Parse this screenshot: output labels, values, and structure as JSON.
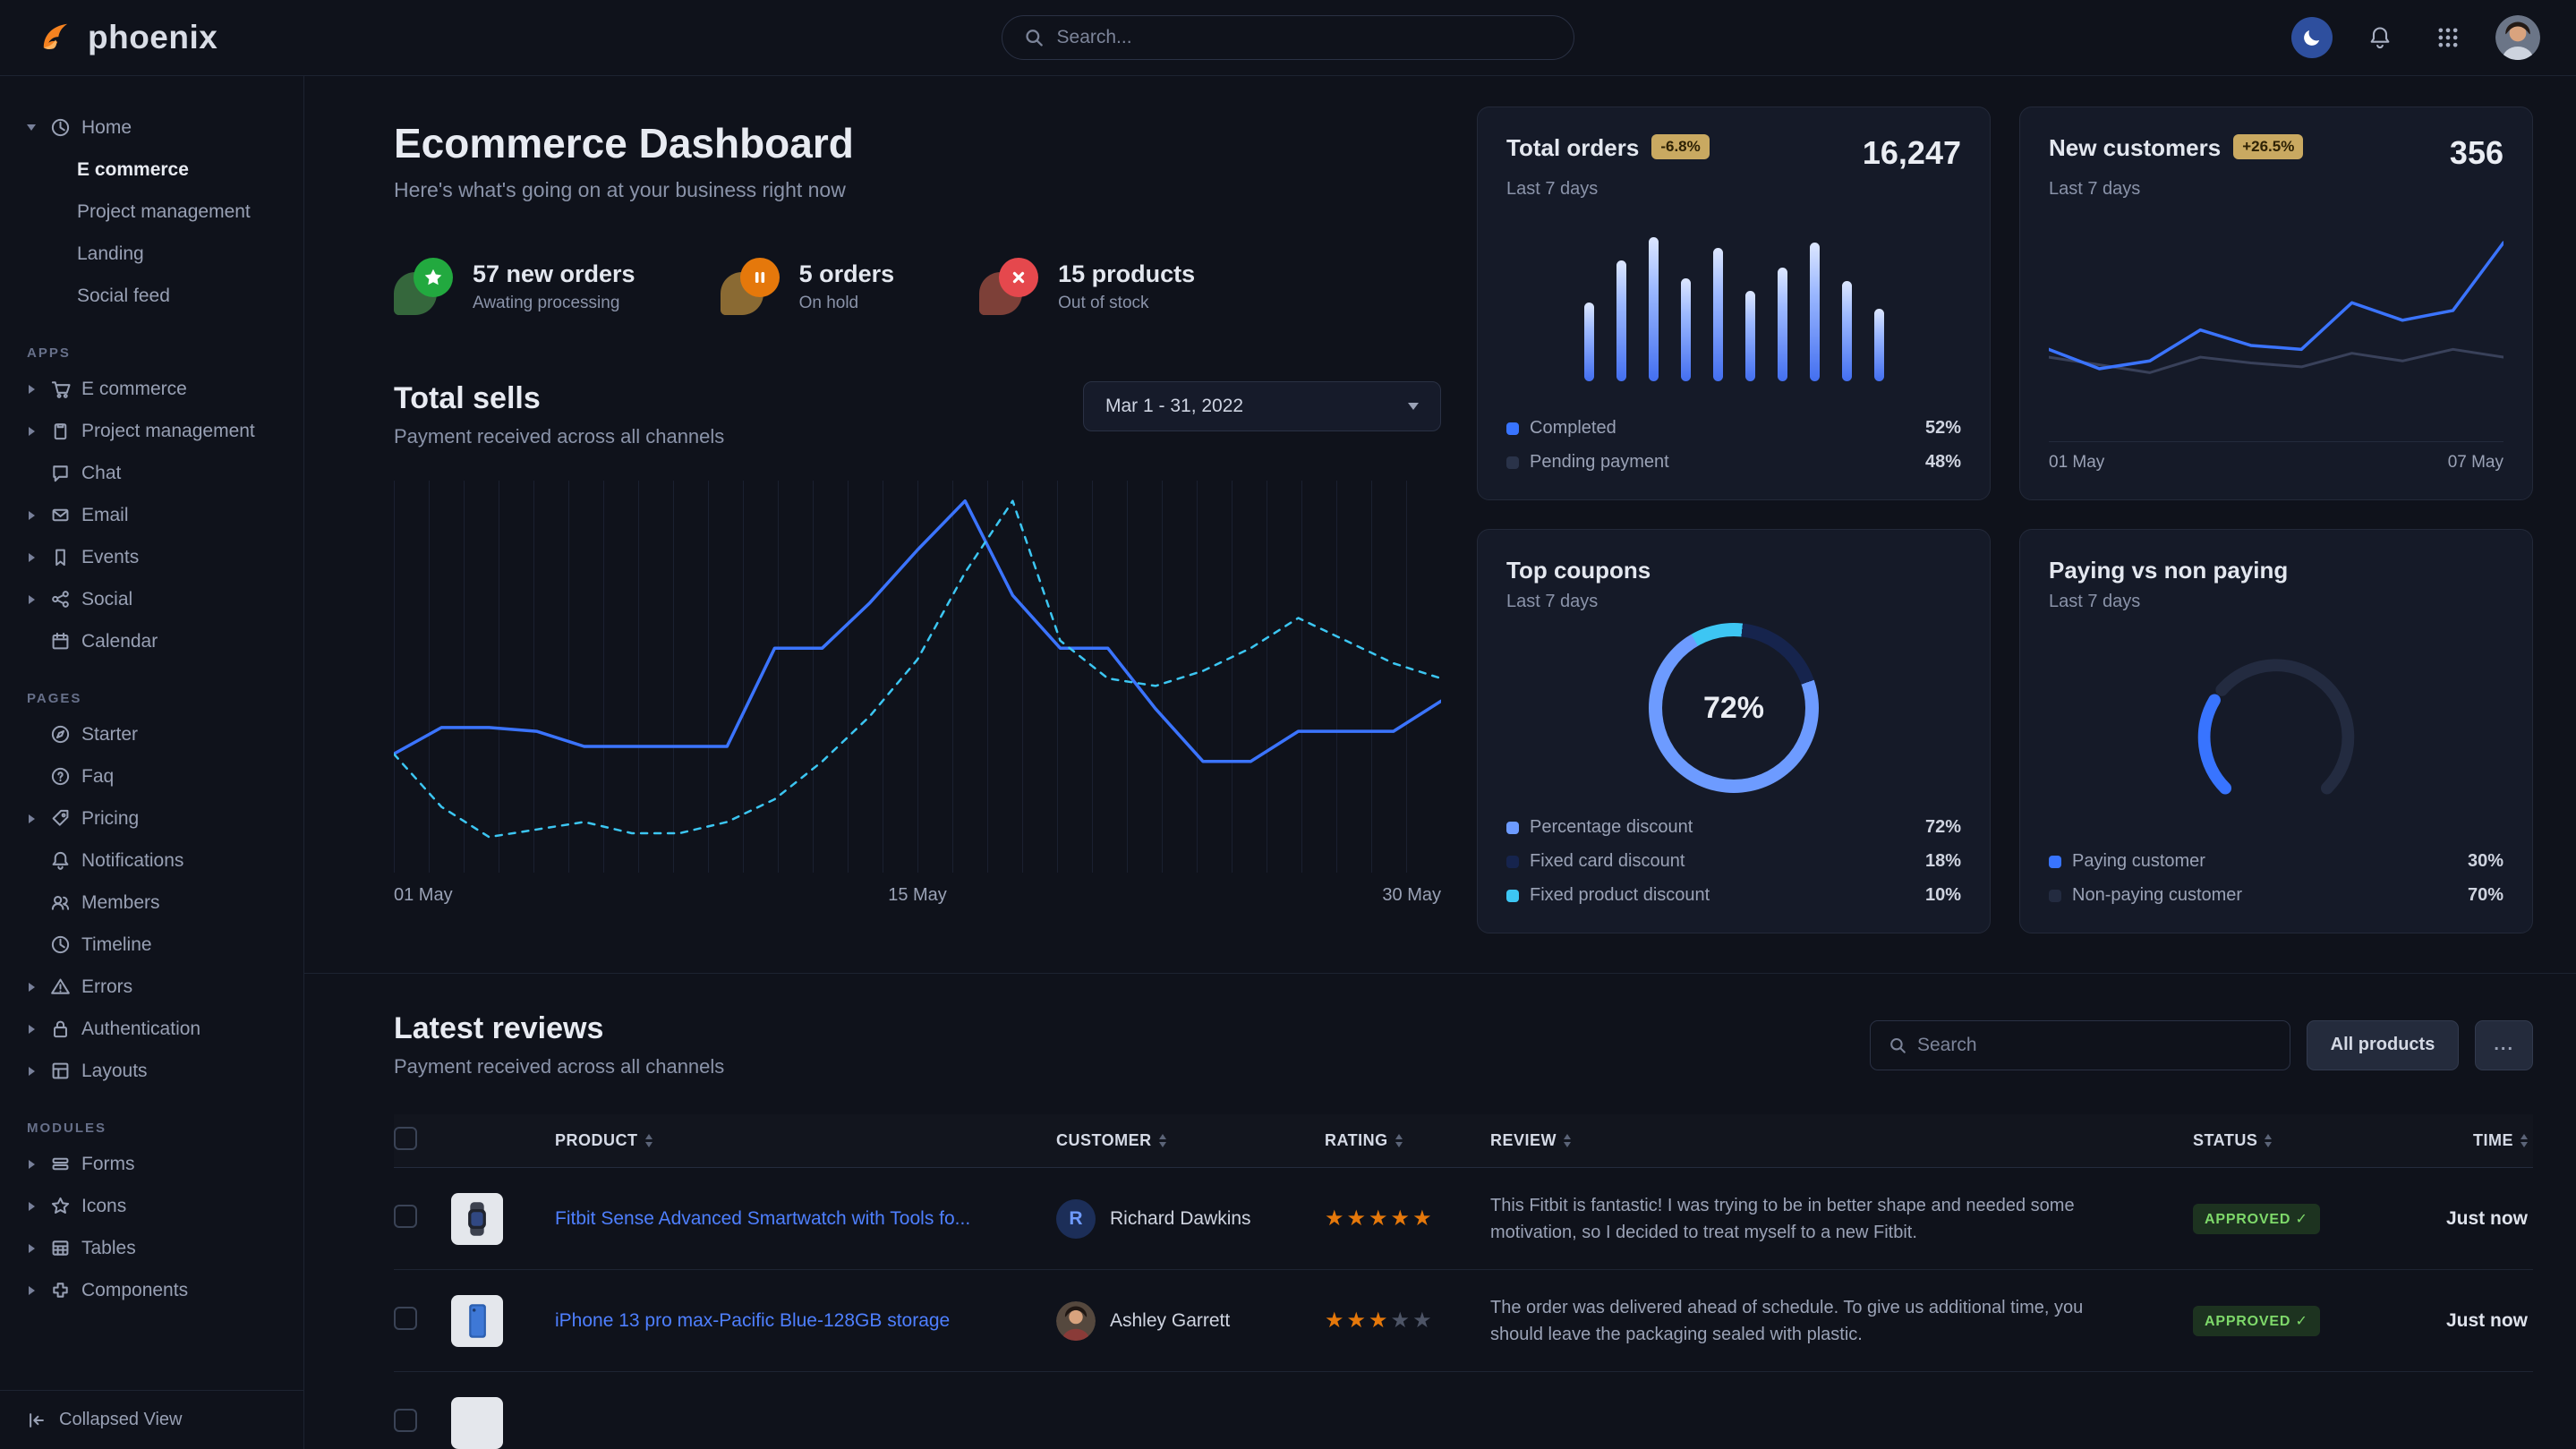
{
  "theme": {
    "bg": "#0f121b",
    "card": "#151a28",
    "primary": "#3874ff",
    "link": "#4e7fff",
    "green": "#25b003",
    "orange": "#e5780b",
    "red": "#ed2000",
    "cyan": "#3cc6f2"
  },
  "navbar": {
    "brand": "phoenix",
    "search": {
      "placeholder": "Search..."
    }
  },
  "sidebar": {
    "groups": [
      {
        "label": null,
        "items": [
          {
            "icon": "clock",
            "label": "Home",
            "caret": "down",
            "children": [
              {
                "label": "E commerce",
                "active": true
              },
              {
                "label": "Project management"
              },
              {
                "label": "Landing"
              },
              {
                "label": "Social feed"
              }
            ]
          }
        ]
      },
      {
        "label": "APPS",
        "items": [
          {
            "icon": "cart",
            "label": "E commerce",
            "caret": "right"
          },
          {
            "icon": "clipboard",
            "label": "Project management",
            "caret": "right"
          },
          {
            "icon": "chat",
            "label": "Chat"
          },
          {
            "icon": "mail",
            "label": "Email",
            "caret": "right"
          },
          {
            "icon": "bookmark",
            "label": "Events",
            "caret": "right"
          },
          {
            "icon": "share",
            "label": "Social",
            "caret": "right"
          },
          {
            "icon": "calendar",
            "label": "Calendar"
          }
        ]
      },
      {
        "label": "PAGES",
        "items": [
          {
            "icon": "compass",
            "label": "Starter"
          },
          {
            "icon": "question",
            "label": "Faq"
          },
          {
            "icon": "tag",
            "label": "Pricing",
            "caret": "right"
          },
          {
            "icon": "bell",
            "label": "Notifications"
          },
          {
            "icon": "users",
            "label": "Members"
          },
          {
            "icon": "clock",
            "label": "Timeline"
          },
          {
            "icon": "warning",
            "label": "Errors",
            "caret": "right"
          },
          {
            "icon": "lock",
            "label": "Authentication",
            "caret": "right"
          },
          {
            "icon": "layout",
            "label": "Layouts",
            "caret": "right"
          }
        ]
      },
      {
        "label": "MODULES",
        "items": [
          {
            "icon": "form",
            "label": "Forms",
            "caret": "right"
          },
          {
            "icon": "star",
            "label": "Icons",
            "caret": "right"
          },
          {
            "icon": "table",
            "label": "Tables",
            "caret": "right"
          },
          {
            "icon": "puzzle",
            "label": "Components",
            "caret": "right"
          }
        ]
      }
    ],
    "footer": {
      "label": "Collapsed View"
    }
  },
  "header": {
    "title": "Ecommerce Dashboard",
    "subtitle": "Here's what's going on at your business right now"
  },
  "stats": [
    {
      "glyph": "star",
      "circle": "#22a93f",
      "blob": "#35673c",
      "value": "57 new orders",
      "label": "Awating processing"
    },
    {
      "glyph": "pause",
      "circle": "#e5780b",
      "blob": "#8a6a33",
      "value": "5 orders",
      "label": "On hold"
    },
    {
      "glyph": "cross",
      "circle": "#e5484d",
      "blob": "#7d4038",
      "value": "15 products",
      "label": "Out of stock"
    }
  ],
  "total_sells": {
    "title": "Total sells",
    "subtitle": "Payment received across all channels",
    "date_range": "Mar 1 - 31, 2022",
    "x_labels": [
      "01 May",
      "15 May",
      "30 May"
    ],
    "chart": {
      "type": "line",
      "series": [
        {
          "name": "primary",
          "style": "solid",
          "color": "#3b74ff",
          "width": 3.5,
          "values": [
            30,
            37,
            37,
            36,
            32,
            32,
            32,
            32,
            58,
            58,
            70,
            84,
            97,
            72,
            58,
            58,
            42,
            28,
            28,
            36,
            36,
            36,
            44
          ]
        },
        {
          "name": "secondary",
          "style": "dashed",
          "color": "#3cc6f2",
          "width": 2.5,
          "values": [
            30,
            16,
            8,
            10,
            12,
            9,
            9,
            12,
            18,
            28,
            40,
            55,
            78,
            97,
            60,
            50,
            48,
            52,
            58,
            66,
            60,
            54,
            50
          ]
        }
      ]
    }
  },
  "cards": {
    "total_orders": {
      "title": "Total orders",
      "badge": "-6.8%",
      "period": "Last 7 days",
      "value": "16,247",
      "chart": {
        "type": "bar",
        "values": [
          52,
          80,
          95,
          68,
          88,
          60,
          75,
          92,
          66,
          48
        ]
      },
      "legend": [
        {
          "label": "Completed",
          "value": "52%",
          "color": "#3874ff"
        },
        {
          "label": "Pending payment",
          "value": "48%",
          "color": "#2a3349"
        }
      ]
    },
    "new_customers": {
      "title": "New customers",
      "badge": "+26.5%",
      "period": "Last 7 days",
      "value": "356",
      "x_labels": [
        "01 May",
        "07 May"
      ],
      "chart": {
        "type": "line",
        "series": [
          {
            "name": "previous",
            "style": "solid",
            "color": "#39415a",
            "width": 3,
            "values": [
              36,
              32,
              28,
              36,
              33,
              31,
              38,
              34,
              40,
              36
            ]
          },
          {
            "name": "current",
            "style": "solid",
            "color": "#3b74ff",
            "width": 3.5,
            "values": [
              40,
              30,
              34,
              50,
              42,
              40,
              64,
              55,
              60,
              95
            ]
          }
        ]
      }
    },
    "top_coupons": {
      "title": "Top coupons",
      "period": "Last 7 days",
      "center_label": "72%",
      "chart": {
        "type": "donut",
        "segments": [
          {
            "label": "Percentage discount",
            "value": 72,
            "color": "#6d9bff"
          },
          {
            "label": "Fixed card discount",
            "value": 18,
            "color": "#16244d"
          },
          {
            "label": "Fixed product discount",
            "value": 10,
            "color": "#3dc6f3"
          }
        ]
      }
    },
    "paying": {
      "title": "Paying vs non paying",
      "period": "Last 7 days",
      "chart": {
        "type": "gauge",
        "segments": [
          {
            "label": "Paying customer",
            "value": 30,
            "color": "#3874ff"
          },
          {
            "label": "Non-paying customer",
            "value": 70,
            "color": "#232b40"
          }
        ]
      }
    }
  },
  "reviews": {
    "title": "Latest reviews",
    "subtitle": "Payment received across all channels",
    "search_placeholder": "Search",
    "filter_button": "All products",
    "more_label": "...",
    "columns": [
      "PRODUCT",
      "CUSTOMER",
      "RATING",
      "REVIEW",
      "STATUS",
      "TIME"
    ],
    "rows": [
      {
        "product": "Fitbit Sense Advanced Smartwatch with Tools fo...",
        "thumb": "watch",
        "customer": "Richard Dawkins",
        "avatar_type": "initial",
        "avatar_text": "R",
        "rating": 5,
        "review": "This Fitbit is fantastic! I was trying to be in better shape and needed some motivation, so I decided to treat myself to a new Fitbit.",
        "status": "APPROVED",
        "time": "Just now"
      },
      {
        "product": "iPhone 13 pro max-Pacific Blue-128GB storage",
        "thumb": "phone",
        "customer": "Ashley Garrett",
        "avatar_type": "photo",
        "avatar_text": "",
        "rating": 3,
        "review": "The order was delivered ahead of schedule. To give us additional time, you should leave the packaging sealed with plastic.",
        "status": "APPROVED",
        "time": "Just now"
      }
    ]
  }
}
